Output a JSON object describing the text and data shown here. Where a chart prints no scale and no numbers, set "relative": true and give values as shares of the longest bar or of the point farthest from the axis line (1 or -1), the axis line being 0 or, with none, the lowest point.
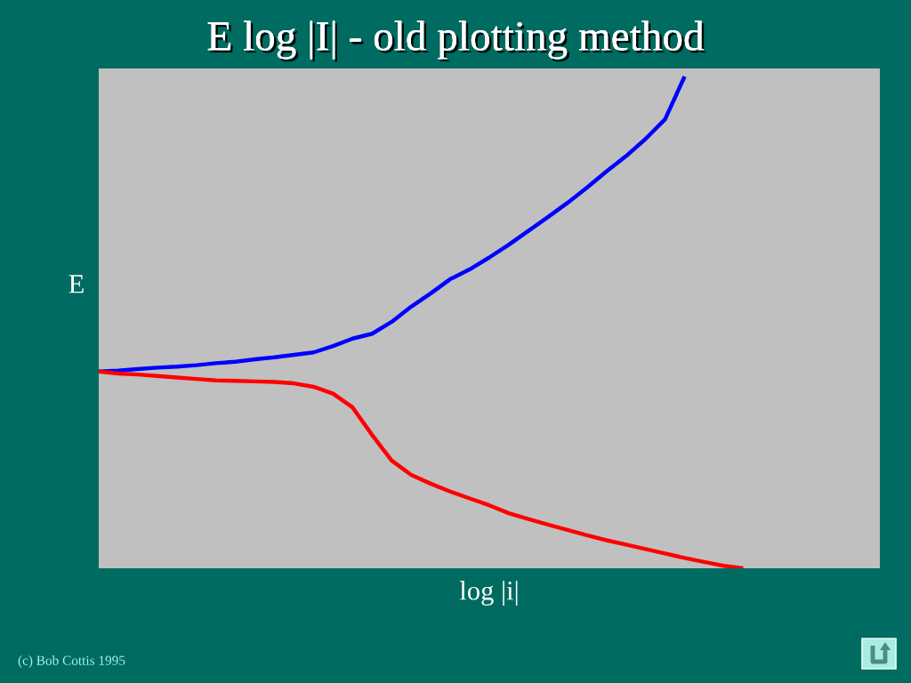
{
  "chart_data": {
    "type": "line",
    "title": "E log |I| - old plotting method",
    "xlabel": "log |i|",
    "ylabel": "E",
    "annotations": [
      "(c) Bob Cottis 1995"
    ],
    "relative": true,
    "line_style": "solid",
    "categories": [
      null,
      null,
      null,
      null,
      null,
      null,
      null,
      null,
      null,
      null,
      null,
      null,
      null,
      null,
      null,
      null,
      null,
      null,
      null,
      null,
      null,
      null,
      null,
      null,
      null,
      null,
      null,
      null,
      null,
      null,
      null,
      null,
      null,
      null,
      null,
      null,
      null,
      null,
      null,
      null,
      null
    ],
    "series": [
      {
        "color": "#0000ff",
        "values": [
          0.4,
          0.402,
          0.405,
          0.408,
          0.41,
          0.413,
          0.417,
          0.42,
          0.425,
          0.429,
          0.434,
          0.439,
          0.452,
          0.467,
          0.477,
          0.501,
          0.532,
          0.559,
          0.588,
          0.608,
          0.632,
          0.658,
          0.686,
          0.714,
          0.743,
          0.774,
          0.807,
          0.838,
          0.873,
          0.913,
          1.0,
          null,
          null,
          null,
          null,
          null,
          null,
          null,
          null,
          null,
          null
        ]
      },
      {
        "color": "#ff0000",
        "values": [
          0.4,
          0.396,
          0.394,
          0.391,
          0.388,
          0.385,
          0.382,
          0.381,
          0.38,
          0.379,
          0.376,
          0.369,
          0.355,
          0.327,
          0.271,
          0.219,
          0.19,
          0.172,
          0.156,
          0.142,
          0.128,
          0.112,
          0.1,
          0.089,
          0.078,
          0.067,
          0.057,
          0.048,
          0.039,
          0.03,
          0.021,
          0.013,
          0.005,
          0.0,
          null,
          null,
          null,
          null,
          null,
          null,
          null
        ]
      }
    ]
  }
}
